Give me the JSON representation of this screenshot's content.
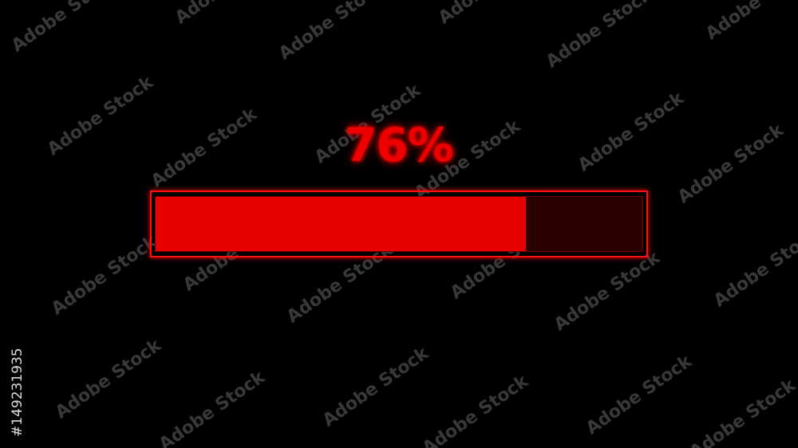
{
  "progress": {
    "label": "76%",
    "value_percent": 76
  },
  "colors": {
    "fill": "#e60000",
    "track": "#2a0000",
    "border": "#ff1010",
    "text": "#ee0000"
  },
  "watermark": {
    "text": "Adobe Stock",
    "id": "#149231935"
  }
}
